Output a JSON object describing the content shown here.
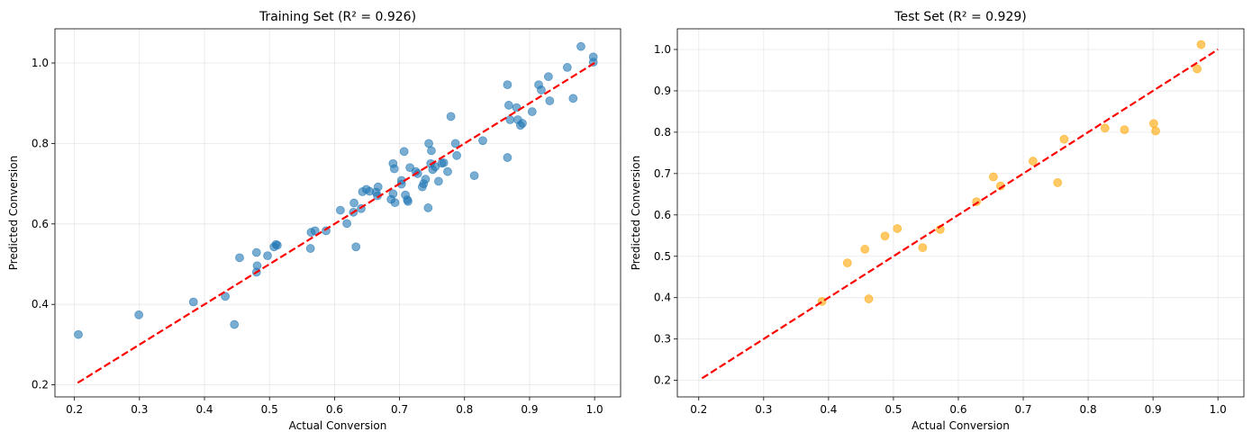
{
  "chart_data": [
    {
      "type": "scatter",
      "title": "Training Set (R² = 0.926)",
      "xlabel": "Actual Conversion",
      "ylabel": "Predicted Conversion",
      "xlim": [
        0.17,
        1.04
      ],
      "ylim": [
        0.17,
        1.085
      ],
      "xticks": [
        0.2,
        0.3,
        0.4,
        0.5,
        0.6,
        0.7,
        0.8,
        0.9,
        1.0
      ],
      "xtick_labels": [
        "0.2",
        "0.3",
        "0.4",
        "0.5",
        "0.6",
        "0.7",
        "0.8",
        "0.9",
        "1.0"
      ],
      "yticks": [
        0.2,
        0.4,
        0.6,
        0.8,
        1.0
      ],
      "ytick_labels": [
        "0.2",
        "0.4",
        "0.6",
        "0.8",
        "1.0"
      ],
      "grid": true,
      "point_color": "#1f77b4",
      "reference_line": {
        "from": [
          0.205,
          0.205
        ],
        "to": [
          1.0,
          1.0
        ],
        "color": "#ff0000",
        "style": "dashed"
      },
      "points": [
        [
          0.206,
          0.325
        ],
        [
          0.299,
          0.374
        ],
        [
          0.383,
          0.406
        ],
        [
          0.432,
          0.42
        ],
        [
          0.446,
          0.35
        ],
        [
          0.454,
          0.516
        ],
        [
          0.48,
          0.529
        ],
        [
          0.48,
          0.48
        ],
        [
          0.481,
          0.496
        ],
        [
          0.497,
          0.521
        ],
        [
          0.507,
          0.543
        ],
        [
          0.51,
          0.549
        ],
        [
          0.512,
          0.547
        ],
        [
          0.563,
          0.539
        ],
        [
          0.564,
          0.579
        ],
        [
          0.57,
          0.583
        ],
        [
          0.587,
          0.583
        ],
        [
          0.609,
          0.634
        ],
        [
          0.619,
          0.601
        ],
        [
          0.629,
          0.629
        ],
        [
          0.63,
          0.652
        ],
        [
          0.633,
          0.543
        ],
        [
          0.641,
          0.638
        ],
        [
          0.643,
          0.68
        ],
        [
          0.649,
          0.686
        ],
        [
          0.654,
          0.681
        ],
        [
          0.664,
          0.679
        ],
        [
          0.666,
          0.67
        ],
        [
          0.667,
          0.692
        ],
        [
          0.687,
          0.661
        ],
        [
          0.69,
          0.675
        ],
        [
          0.69,
          0.75
        ],
        [
          0.692,
          0.737
        ],
        [
          0.693,
          0.653
        ],
        [
          0.703,
          0.699
        ],
        [
          0.703,
          0.708
        ],
        [
          0.707,
          0.78
        ],
        [
          0.709,
          0.672
        ],
        [
          0.712,
          0.66
        ],
        [
          0.713,
          0.656
        ],
        [
          0.716,
          0.74
        ],
        [
          0.725,
          0.73
        ],
        [
          0.728,
          0.725
        ],
        [
          0.735,
          0.692
        ],
        [
          0.737,
          0.7
        ],
        [
          0.74,
          0.711
        ],
        [
          0.744,
          0.64
        ],
        [
          0.745,
          0.8
        ],
        [
          0.748,
          0.75
        ],
        [
          0.749,
          0.782
        ],
        [
          0.751,
          0.735
        ],
        [
          0.755,
          0.742
        ],
        [
          0.76,
          0.706
        ],
        [
          0.765,
          0.751
        ],
        [
          0.768,
          0.752
        ],
        [
          0.774,
          0.73
        ],
        [
          0.779,
          0.867
        ],
        [
          0.786,
          0.8
        ],
        [
          0.788,
          0.77
        ],
        [
          0.815,
          0.72
        ],
        [
          0.828,
          0.807
        ],
        [
          0.866,
          0.946
        ],
        [
          0.866,
          0.765
        ],
        [
          0.868,
          0.895
        ],
        [
          0.87,
          0.859
        ],
        [
          0.88,
          0.889
        ],
        [
          0.882,
          0.859
        ],
        [
          0.886,
          0.845
        ],
        [
          0.889,
          0.85
        ],
        [
          0.904,
          0.879
        ],
        [
          0.914,
          0.946
        ],
        [
          0.918,
          0.933
        ],
        [
          0.929,
          0.966
        ],
        [
          0.931,
          0.906
        ],
        [
          0.958,
          0.989
        ],
        [
          0.967,
          0.912
        ],
        [
          0.979,
          1.041
        ],
        [
          0.998,
          1.015
        ],
        [
          0.998,
          1.002
        ]
      ]
    },
    {
      "type": "scatter",
      "title": "Test Set (R² = 0.929)",
      "xlabel": "Actual Conversion",
      "ylabel": "Predicted Conversion",
      "xlim": [
        0.167,
        1.04
      ],
      "ylim": [
        0.16,
        1.05
      ],
      "xticks": [
        0.2,
        0.3,
        0.4,
        0.5,
        0.6,
        0.7,
        0.8,
        0.9,
        1.0
      ],
      "xtick_labels": [
        "0.2",
        "0.3",
        "0.4",
        "0.5",
        "0.6",
        "0.7",
        "0.8",
        "0.9",
        "1.0"
      ],
      "yticks": [
        0.2,
        0.3,
        0.4,
        0.5,
        0.6,
        0.7,
        0.8,
        0.9,
        1.0
      ],
      "ytick_labels": [
        "0.2",
        "0.3",
        "0.4",
        "0.5",
        "0.6",
        "0.7",
        "0.8",
        "0.9",
        "1.0"
      ],
      "grid": true,
      "point_color": "#ffa500",
      "reference_line": {
        "from": [
          0.205,
          0.205
        ],
        "to": [
          1.0,
          1.0
        ],
        "color": "#ff0000",
        "style": "dashed"
      },
      "points": [
        [
          0.39,
          0.391
        ],
        [
          0.429,
          0.484
        ],
        [
          0.456,
          0.517
        ],
        [
          0.462,
          0.397
        ],
        [
          0.487,
          0.549
        ],
        [
          0.506,
          0.567
        ],
        [
          0.545,
          0.521
        ],
        [
          0.572,
          0.565
        ],
        [
          0.628,
          0.632
        ],
        [
          0.654,
          0.692
        ],
        [
          0.665,
          0.67
        ],
        [
          0.715,
          0.73
        ],
        [
          0.753,
          0.678
        ],
        [
          0.763,
          0.783
        ],
        [
          0.826,
          0.81
        ],
        [
          0.856,
          0.806
        ],
        [
          0.901,
          0.821
        ],
        [
          0.904,
          0.803
        ],
        [
          0.968,
          0.953
        ],
        [
          0.974,
          1.012
        ]
      ]
    }
  ]
}
